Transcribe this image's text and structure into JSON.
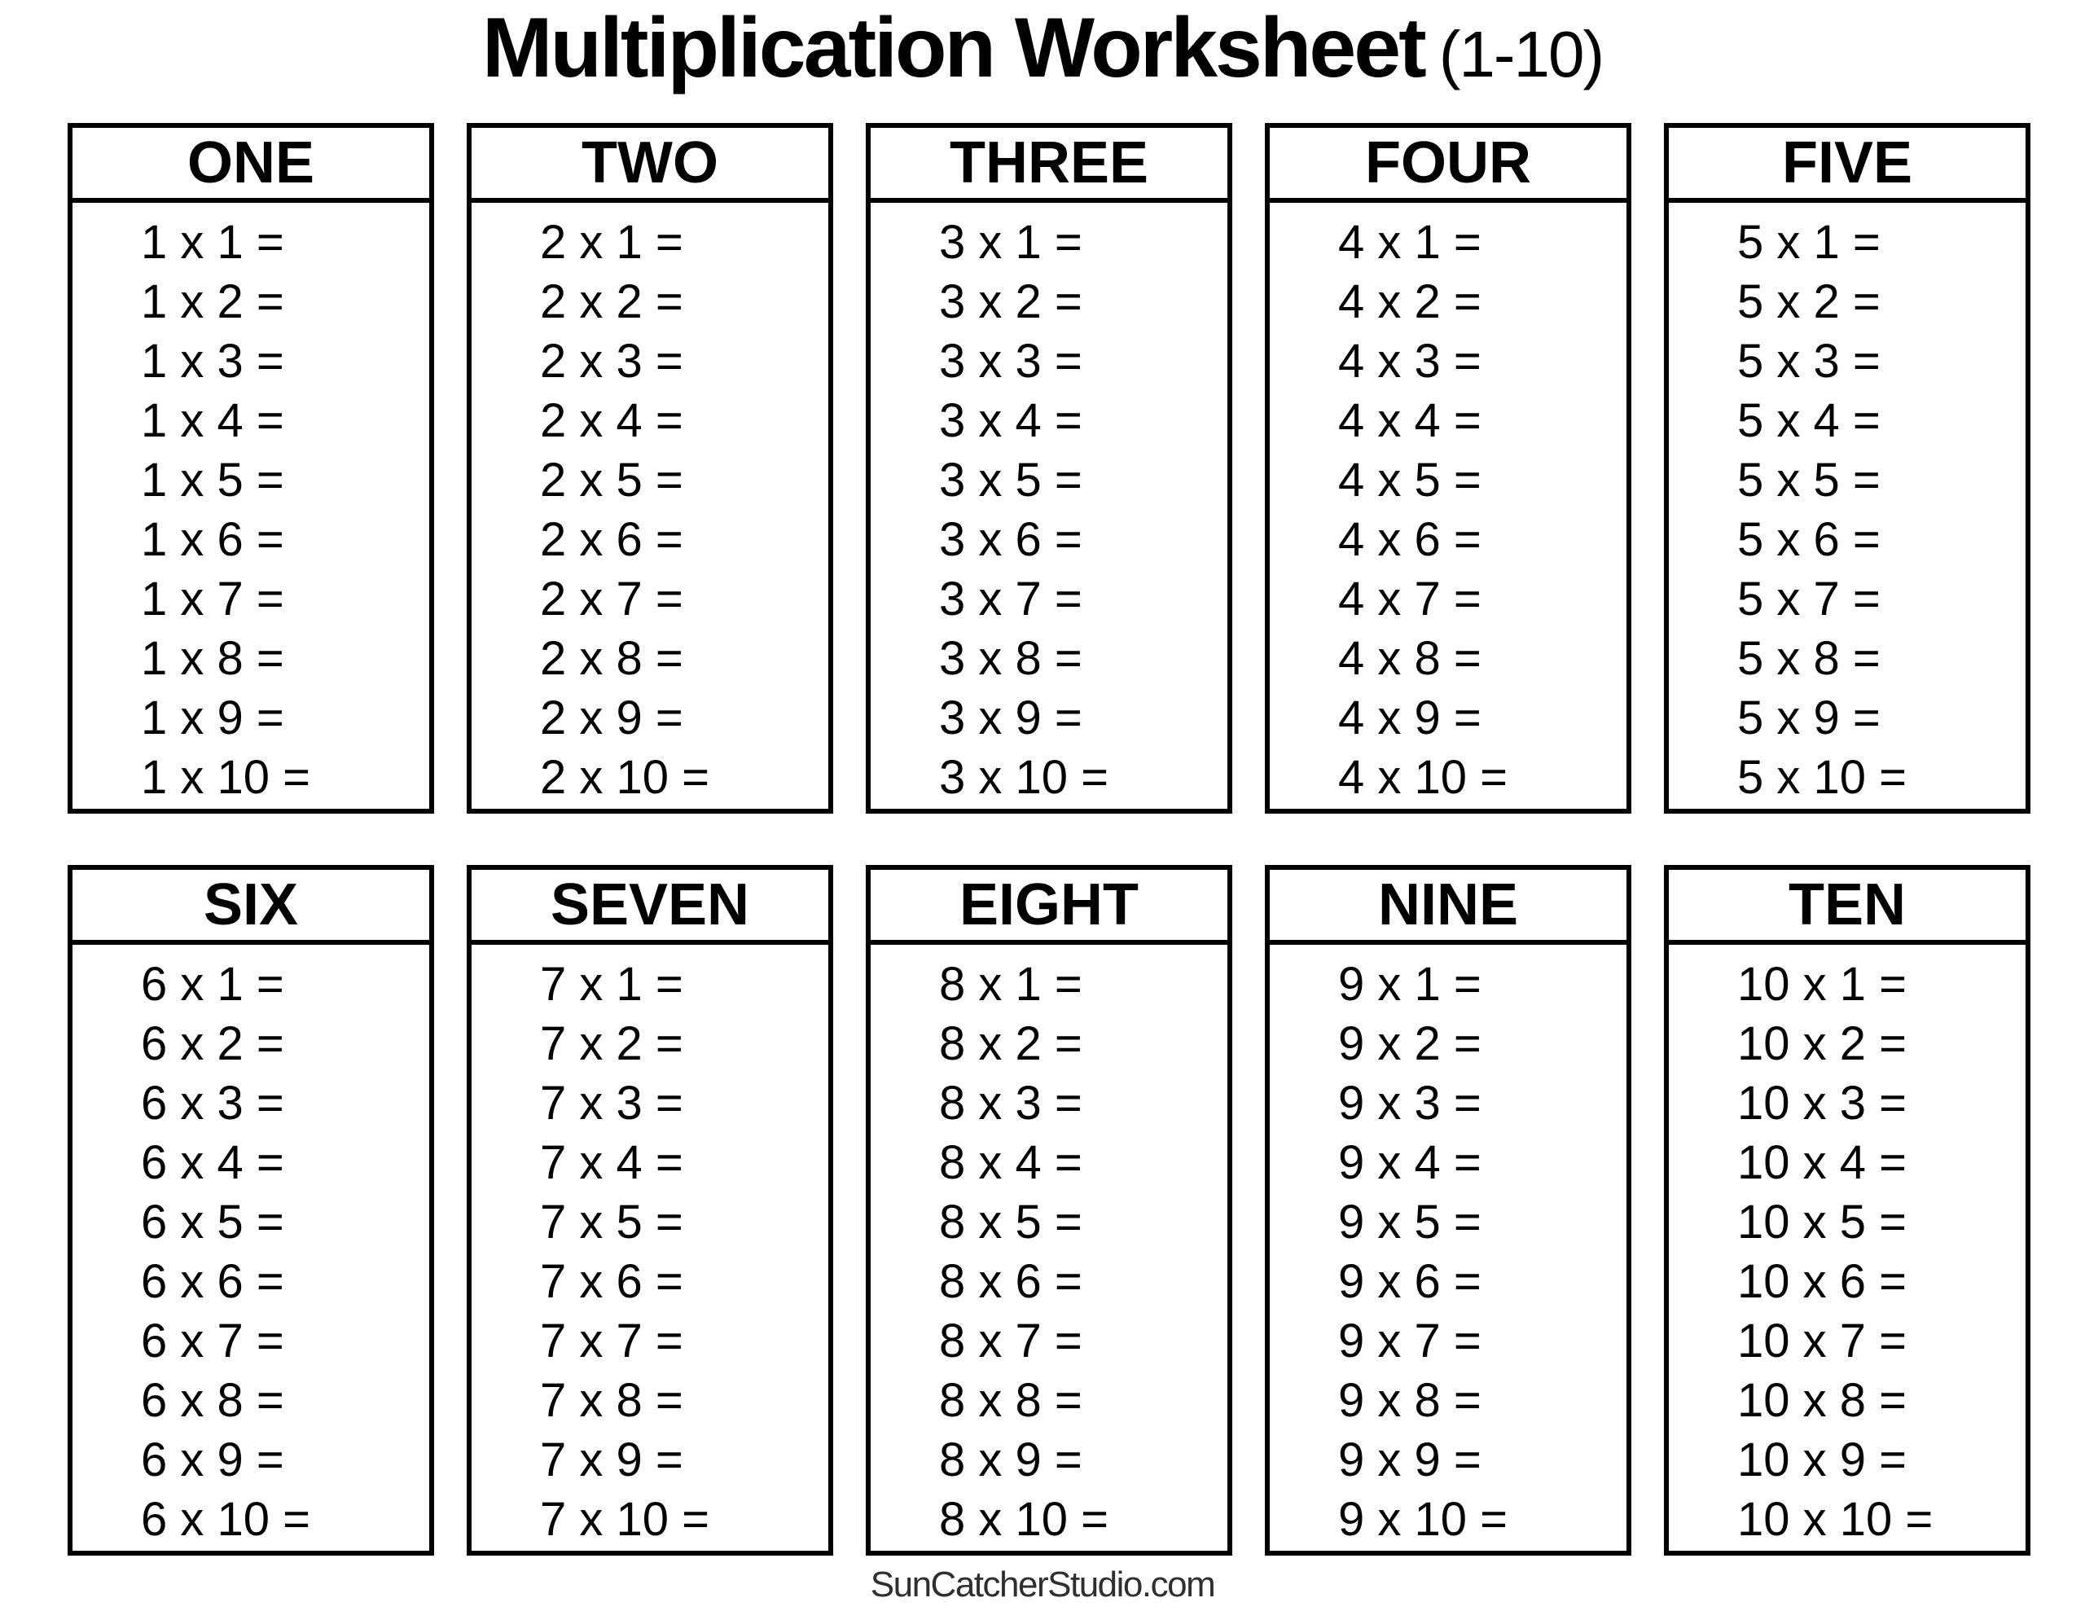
{
  "title": {
    "main": "Multiplication Worksheet",
    "range": "(1-10)"
  },
  "footer": {
    "website": "SunCatcherStudio.com"
  },
  "tables": [
    {
      "label": "ONE",
      "problems": [
        "1 x 1 =",
        "1 x 2 =",
        "1 x 3 =",
        "1 x 4 =",
        "1 x 5 =",
        "1 x 6 =",
        "1 x 7 =",
        "1 x 8 =",
        "1 x 9 =",
        "1 x 10 ="
      ]
    },
    {
      "label": "TWO",
      "problems": [
        "2 x 1 =",
        "2 x 2 =",
        "2 x 3 =",
        "2 x 4 =",
        "2 x 5 =",
        "2 x 6 =",
        "2 x 7 =",
        "2 x 8 =",
        "2 x 9 =",
        "2 x 10 ="
      ]
    },
    {
      "label": "THREE",
      "problems": [
        "3 x 1 =",
        "3 x 2 =",
        "3 x 3 =",
        "3 x 4 =",
        "3 x 5 =",
        "3 x 6 =",
        "3 x 7 =",
        "3 x 8 =",
        "3 x 9 =",
        "3 x 10 ="
      ]
    },
    {
      "label": "FOUR",
      "problems": [
        "4 x 1 =",
        "4 x 2 =",
        "4 x 3 =",
        "4 x 4 =",
        "4 x 5 =",
        "4 x 6 =",
        "4 x 7 =",
        "4 x 8 =",
        "4 x 9 =",
        "4 x 10 ="
      ]
    },
    {
      "label": "FIVE",
      "problems": [
        "5 x 1 =",
        "5 x 2 =",
        "5 x 3 =",
        "5 x 4 =",
        "5 x 5 =",
        "5 x 6 =",
        "5 x 7 =",
        "5 x 8 =",
        "5 x 9 =",
        "5 x 10 ="
      ]
    },
    {
      "label": "SIX",
      "problems": [
        "6 x 1 =",
        "6 x 2 =",
        "6 x 3 =",
        "6 x 4 =",
        "6 x 5 =",
        "6 x 6 =",
        "6 x 7 =",
        "6 x 8 =",
        "6 x 9 =",
        "6 x 10 ="
      ]
    },
    {
      "label": "SEVEN",
      "problems": [
        "7 x 1 =",
        "7 x 2 =",
        "7 x 3 =",
        "7 x 4 =",
        "7 x 5 =",
        "7 x 6 =",
        "7 x 7 =",
        "7 x 8 =",
        "7 x 9 =",
        "7 x 10 ="
      ]
    },
    {
      "label": "EIGHT",
      "problems": [
        "8 x 1 =",
        "8 x 2 =",
        "8 x 3 =",
        "8 x 4 =",
        "8 x 5 =",
        "8 x 6 =",
        "8 x 7 =",
        "8 x 8 =",
        "8 x 9 =",
        "8 x 10 ="
      ]
    },
    {
      "label": "NINE",
      "problems": [
        "9 x 1 =",
        "9 x 2 =",
        "9 x 3 =",
        "9 x 4 =",
        "9 x 5 =",
        "9 x 6 =",
        "9 x 7 =",
        "9 x 8 =",
        "9 x 9 =",
        "9 x 10 ="
      ]
    },
    {
      "label": "TEN",
      "problems": [
        "10 x 1 =",
        "10 x 2 =",
        "10 x 3 =",
        "10 x 4 =",
        "10 x 5 =",
        "10 x 6 =",
        "10 x 7 =",
        "10 x 8 =",
        "10 x 9 =",
        "10 x 10 ="
      ]
    }
  ]
}
